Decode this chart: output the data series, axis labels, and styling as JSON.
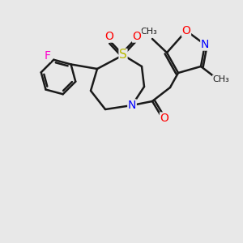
{
  "background_color": "#e8e8e8",
  "bond_color": "#1a1a1a",
  "bond_width": 1.8,
  "atom_colors": {
    "N": "#0000ff",
    "O": "#ff0000",
    "S": "#b8b800",
    "F": "#ff00cc",
    "C": "#1a1a1a"
  }
}
